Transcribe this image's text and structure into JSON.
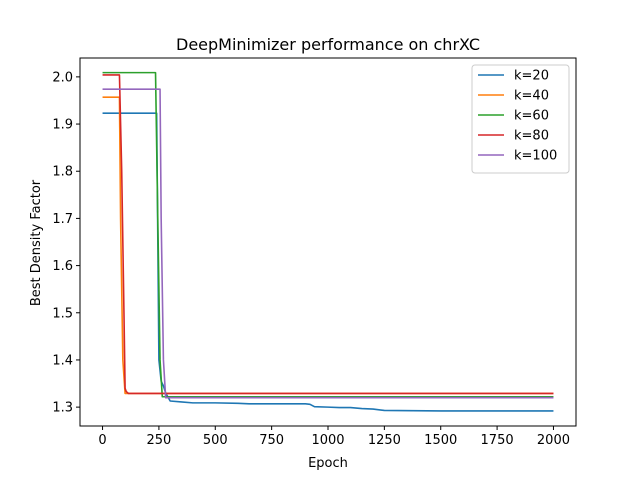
{
  "chart_data": {
    "type": "line",
    "title": "DeepMinimizer performance on chrXC",
    "xlabel": "Epoch",
    "ylabel": "Best Density Factor",
    "xlim": [
      -100,
      2100
    ],
    "ylim": [
      1.26,
      2.04
    ],
    "xticks": [
      0,
      250,
      500,
      750,
      1000,
      1250,
      1500,
      1750,
      2000
    ],
    "yticks": [
      1.3,
      1.4,
      1.5,
      1.6,
      1.7,
      1.8,
      1.9,
      2.0
    ],
    "xtick_labels": [
      "0",
      "250",
      "500",
      "750",
      "1000",
      "1250",
      "1500",
      "1750",
      "2000"
    ],
    "ytick_labels": [
      "1.3",
      "1.4",
      "1.5",
      "1.6",
      "1.7",
      "1.8",
      "1.9",
      "2.0"
    ],
    "grid": false,
    "legend_position": "top-right",
    "series": [
      {
        "name": "k=20",
        "color": "#1f77b4",
        "x": [
          0,
          240,
          250,
          260,
          270,
          280,
          300,
          350,
          400,
          500,
          600,
          650,
          700,
          800,
          900,
          920,
          940,
          1000,
          1050,
          1100,
          1150,
          1200,
          1250,
          1500,
          2000
        ],
        "y": [
          1.923,
          1.923,
          1.4,
          1.355,
          1.345,
          1.33,
          1.313,
          1.311,
          1.309,
          1.309,
          1.308,
          1.307,
          1.307,
          1.307,
          1.307,
          1.306,
          1.301,
          1.3,
          1.299,
          1.299,
          1.297,
          1.296,
          1.293,
          1.292,
          1.292
        ]
      },
      {
        "name": "k=40",
        "color": "#ff7f0e",
        "x": [
          0,
          75,
          80,
          90,
          100,
          2000
        ],
        "y": [
          1.957,
          1.957,
          1.7,
          1.4,
          1.329,
          1.329
        ]
      },
      {
        "name": "k=60",
        "color": "#2ca02c",
        "x": [
          0,
          235,
          245,
          255,
          265,
          2000
        ],
        "y": [
          2.009,
          2.009,
          1.7,
          1.4,
          1.322,
          1.322
        ]
      },
      {
        "name": "k=80",
        "color": "#d62728",
        "x": [
          0,
          75,
          85,
          95,
          100,
          105,
          115,
          2000
        ],
        "y": [
          2.004,
          2.004,
          1.8,
          1.5,
          1.34,
          1.333,
          1.329,
          1.329
        ]
      },
      {
        "name": "k=100",
        "color": "#9467bd",
        "x": [
          0,
          255,
          260,
          270,
          280,
          2000
        ],
        "y": [
          1.974,
          1.974,
          1.7,
          1.4,
          1.32,
          1.32
        ]
      }
    ]
  }
}
